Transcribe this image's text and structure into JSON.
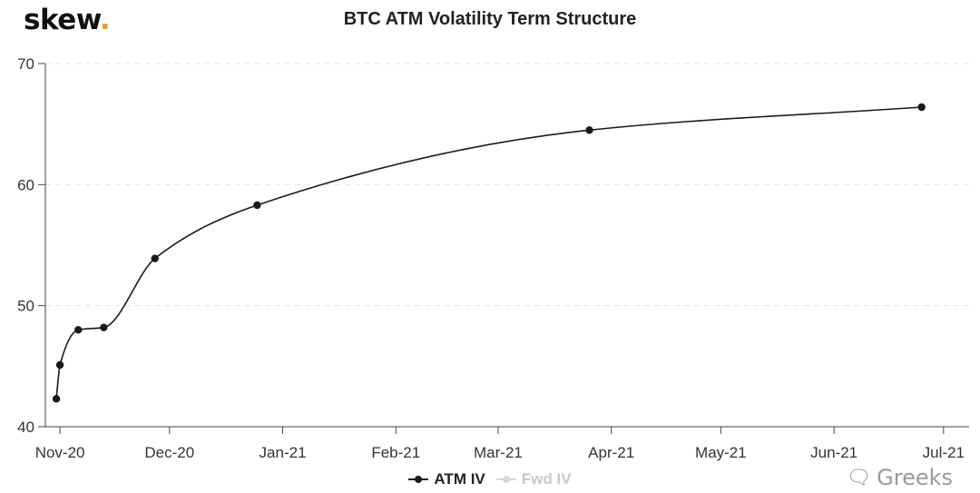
{
  "logo": {
    "text": "skew",
    "dot": "."
  },
  "chart_data": {
    "type": "line",
    "title": "BTC ATM Volatility Term Structure",
    "xlabel": "",
    "ylabel": "",
    "x_ticks": [
      "Nov-20",
      "Dec-20",
      "Jan-21",
      "Feb-21",
      "Mar-21",
      "Apr-21",
      "May-21",
      "Jun-21",
      "Jul-21"
    ],
    "x_tick_dates": [
      "2020-11-01",
      "2020-12-01",
      "2021-01-01",
      "2021-02-01",
      "2021-03-01",
      "2021-04-01",
      "2021-05-01",
      "2021-06-01",
      "2021-07-01"
    ],
    "y_ticks": [
      40,
      50,
      60,
      70
    ],
    "ylim": [
      40,
      70
    ],
    "xlim": [
      "2020-10-28",
      "2021-07-08"
    ],
    "grid": "horizontal-dashed",
    "legend_position": "bottom-center",
    "series": [
      {
        "name": "ATM IV",
        "color": "#1a1a1a",
        "active": true,
        "points": [
          {
            "x": "2020-10-31",
            "y": 42.3
          },
          {
            "x": "2020-11-01",
            "y": 45.1
          },
          {
            "x": "2020-11-06",
            "y": 48.0
          },
          {
            "x": "2020-11-13",
            "y": 48.2
          },
          {
            "x": "2020-11-27",
            "y": 53.9
          },
          {
            "x": "2020-12-25",
            "y": 58.3
          },
          {
            "x": "2021-03-26",
            "y": 64.5
          },
          {
            "x": "2021-06-25",
            "y": 66.4
          }
        ]
      },
      {
        "name": "Fwd IV",
        "color": "#d8d8d8",
        "active": false,
        "points": []
      }
    ]
  },
  "watermark": {
    "icon": "wechat-icon",
    "text": "Greeks"
  }
}
